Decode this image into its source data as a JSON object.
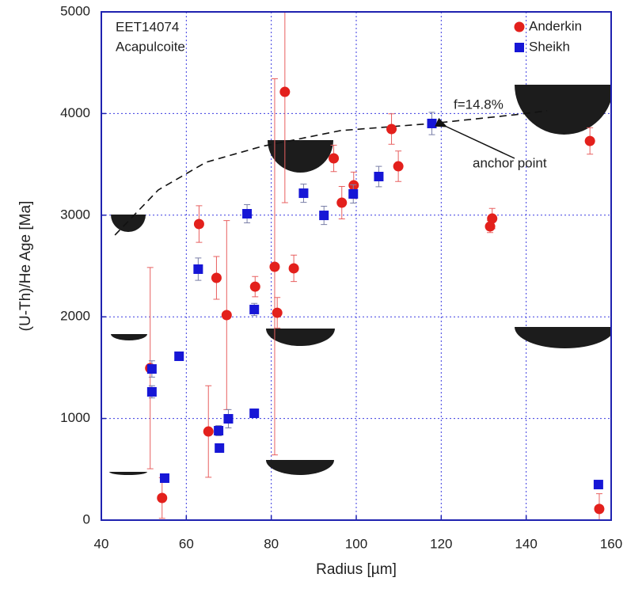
{
  "chart_data": {
    "type": "scatter",
    "annotations": [
      "EET14074",
      "Acapulcoite",
      "f=14.8%",
      "anchor point"
    ],
    "xlabel": "Radius [µm]",
    "ylabel": "(U-Th)/He Age [Ma]",
    "xlim": [
      40,
      160
    ],
    "ylim": [
      0,
      5000
    ],
    "xticks": [
      40,
      60,
      80,
      100,
      120,
      140,
      160
    ],
    "yticks": [
      0,
      1000,
      2000,
      3000,
      4000,
      5000
    ],
    "grid": true,
    "legend": "top-right",
    "series": [
      {
        "name": "Anderkin",
        "color": "#e3201c",
        "marker": "circle",
        "x": [
          51.5,
          54.3,
          63,
          65.2,
          67.1,
          69.5,
          76.2,
          80.8,
          81.4,
          83.2,
          85.3,
          94.7,
          96.6,
          99.4,
          108.3,
          109.9,
          131.5,
          132,
          157.2,
          155
        ],
        "values": [
          1495,
          218,
          2913,
          872,
          2383,
          2017,
          2297,
          2492,
          2040,
          4213,
          2477,
          3559,
          3123,
          3294,
          3847,
          3481,
          2889,
          2967,
          110,
          3730
        ],
        "errors": [
          990,
          200,
          180,
          450,
          210,
          930,
          100,
          1850,
          150,
          1090,
          130,
          130,
          160,
          130,
          150,
          150,
          60,
          100,
          150,
          130
        ]
      },
      {
        "name": "Sheikh",
        "color": "#1616d6",
        "marker": "square",
        "x": [
          51.9,
          51.9,
          54.9,
          58.3,
          62.8,
          67.6,
          67.8,
          69.9,
          74.3,
          76,
          76,
          87.6,
          92.4,
          99.3,
          105.3,
          117.8,
          157
        ],
        "values": [
          1487,
          1262,
          413,
          1612,
          2469,
          880,
          709,
          997,
          3014,
          2072,
          1051,
          3216,
          2998,
          3209,
          3380,
          3902,
          350
        ],
        "errors": [
          80,
          60,
          40,
          40,
          110,
          50,
          40,
          90,
          90,
          60,
          40,
          90,
          90,
          90,
          100,
          110,
          40
        ]
      }
    ],
    "curve": {
      "x": [
        43.2,
        53.4,
        64.6,
        77.7,
        96.3,
        117.8,
        137.4,
        144.9
      ],
      "values": [
        2804,
        3248,
        3520,
        3676,
        3832,
        3902,
        3988,
        4027
      ]
    }
  }
}
